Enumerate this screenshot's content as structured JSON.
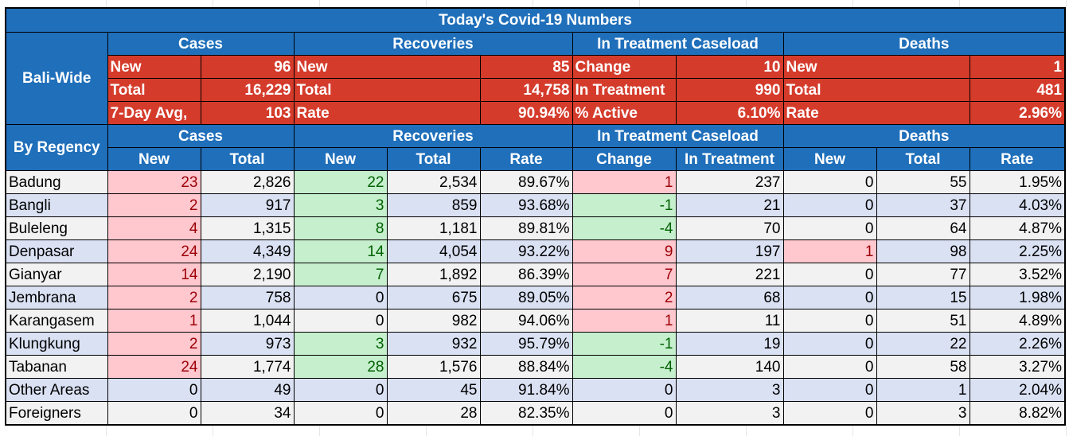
{
  "title": "Today's Covid-19 Numbers",
  "bali_wide": {
    "label": "Bali-Wide",
    "group_headers": [
      "Cases",
      "Recoveries",
      "In Treatment Caseload",
      "Deaths"
    ],
    "rows": [
      [
        "New",
        "96",
        "New",
        "85",
        "Change",
        "10",
        "New",
        "1"
      ],
      [
        "Total",
        "16,229",
        "Total",
        "14,758",
        "In Treatment",
        "990",
        "Total",
        "481"
      ],
      [
        "7-Day Avg,",
        "103",
        "Rate",
        "90.94%",
        "% Active",
        "6.10%",
        "Rate",
        "2.96%"
      ]
    ]
  },
  "by_regency": {
    "label": "By Regency",
    "group_headers": [
      "Cases",
      "Recoveries",
      "In Treatment Caseload",
      "Deaths"
    ],
    "column_headers": [
      "New",
      "Total",
      "New",
      "Total",
      "Rate",
      "Change",
      "In Treatment",
      "New",
      "Total",
      "Rate"
    ],
    "rows": [
      {
        "name": "Badung",
        "cells": [
          "23",
          "2,826",
          "22",
          "2,534",
          "89.67%",
          "1",
          "237",
          "0",
          "55",
          "1.95%"
        ]
      },
      {
        "name": "Bangli",
        "cells": [
          "2",
          "917",
          "3",
          "859",
          "93.68%",
          "-1",
          "21",
          "0",
          "37",
          "4.03%"
        ]
      },
      {
        "name": "Buleleng",
        "cells": [
          "4",
          "1,315",
          "8",
          "1,181",
          "89.81%",
          "-4",
          "70",
          "0",
          "64",
          "4.87%"
        ]
      },
      {
        "name": "Denpasar",
        "cells": [
          "24",
          "4,349",
          "14",
          "4,054",
          "93.22%",
          "9",
          "197",
          "1",
          "98",
          "2.25%"
        ]
      },
      {
        "name": "Gianyar",
        "cells": [
          "14",
          "2,190",
          "7",
          "1,892",
          "86.39%",
          "7",
          "221",
          "0",
          "77",
          "3.52%"
        ]
      },
      {
        "name": "Jembrana",
        "cells": [
          "2",
          "758",
          "0",
          "675",
          "89.05%",
          "2",
          "68",
          "0",
          "15",
          "1.98%"
        ]
      },
      {
        "name": "Karangasem",
        "cells": [
          "1",
          "1,044",
          "0",
          "982",
          "94.06%",
          "1",
          "11",
          "0",
          "51",
          "4.89%"
        ]
      },
      {
        "name": "Klungkung",
        "cells": [
          "2",
          "973",
          "3",
          "932",
          "95.79%",
          "-1",
          "19",
          "0",
          "22",
          "2.26%"
        ]
      },
      {
        "name": "Tabanan",
        "cells": [
          "24",
          "1,774",
          "28",
          "1,576",
          "88.84%",
          "-4",
          "140",
          "0",
          "58",
          "3.27%"
        ]
      },
      {
        "name": "Other Areas",
        "cells": [
          "0",
          "49",
          "0",
          "45",
          "91.84%",
          "0",
          "3",
          "0",
          "1",
          "2.04%"
        ]
      },
      {
        "name": "Foreigners",
        "cells": [
          "0",
          "34",
          "0",
          "28",
          "82.35%",
          "0",
          "3",
          "0",
          "3",
          "8.82%"
        ]
      }
    ]
  },
  "colors": {
    "header_blue": "#1f6fba",
    "summary_red": "#d53b2b",
    "row_gray": "#f2f2f2",
    "row_blue": "#dae1f3",
    "highlight_pink": "#ffc7ce",
    "highlight_green": "#c6efce"
  }
}
